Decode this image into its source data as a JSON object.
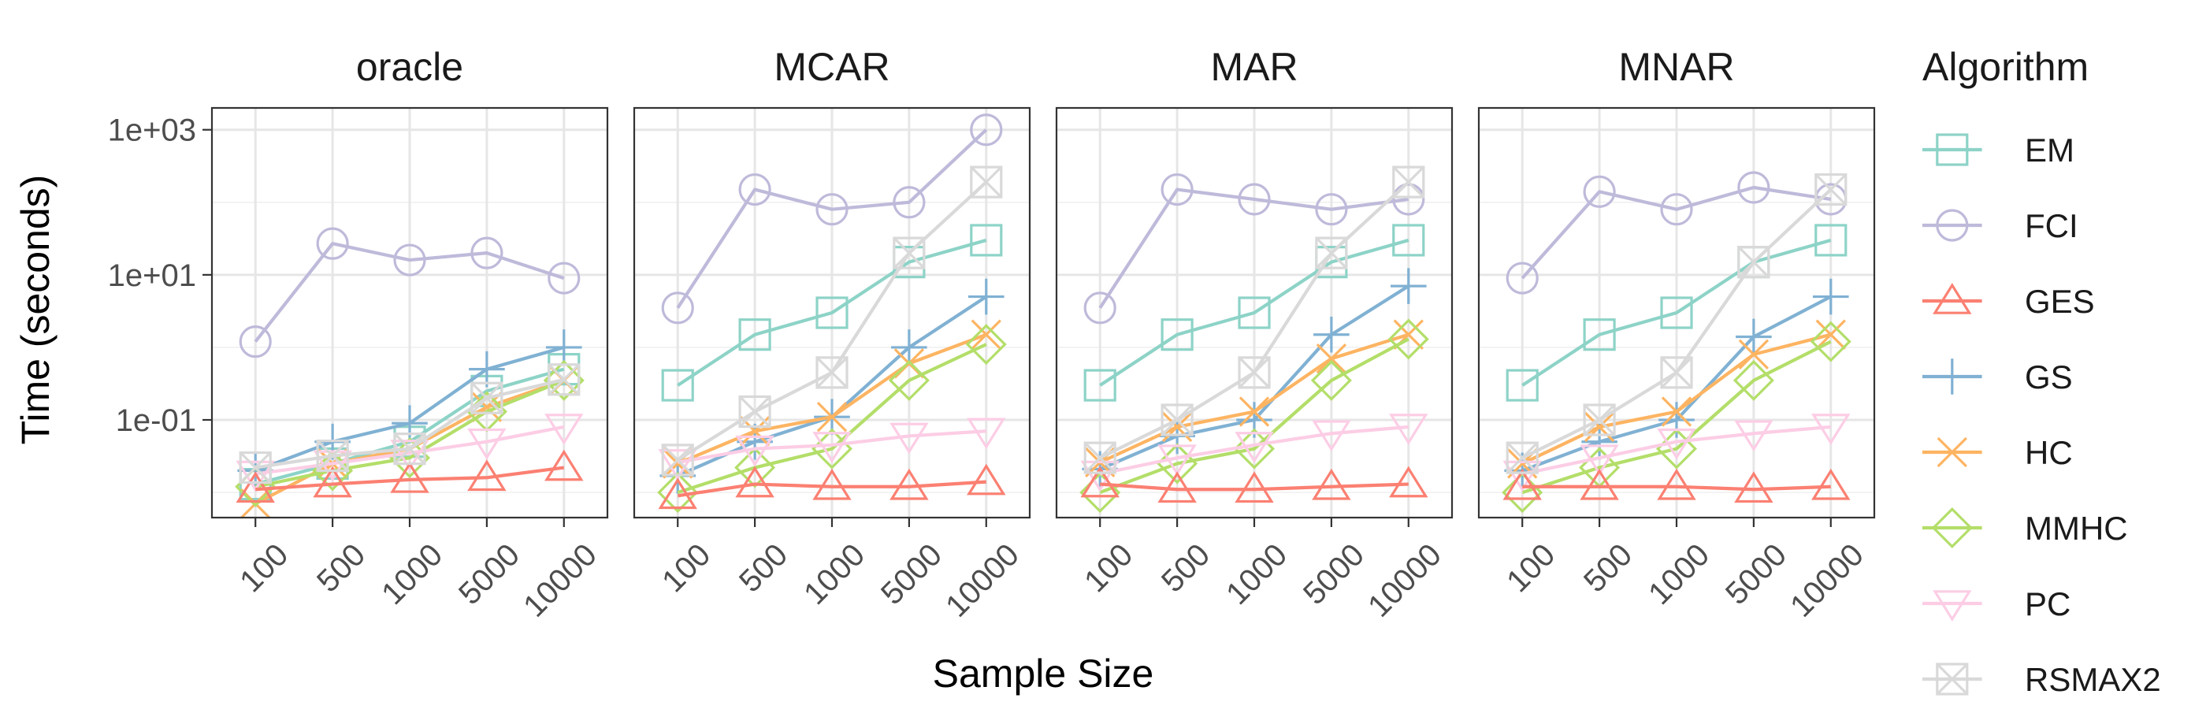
{
  "chart_data": {
    "type": "line",
    "y_scale": "log10",
    "ylabel": "Time (seconds)",
    "xlabel": "Sample Size",
    "x_categories": [
      "100",
      "500",
      "1000",
      "5000",
      "10000"
    ],
    "y_ticks": [
      {
        "value": 1000,
        "label": "1e+03"
      },
      {
        "value": 10,
        "label": "1e+01"
      },
      {
        "value": 0.1,
        "label": "1e-01"
      }
    ],
    "ylim": [
      0.0045,
      2000
    ],
    "grid": true,
    "legend": {
      "title": "Algorithm",
      "position": "right",
      "entries": [
        "EM",
        "FCI",
        "GES",
        "GS",
        "HC",
        "MMHC",
        "PC",
        "RSMAX2"
      ]
    },
    "series_styles": {
      "EM": {
        "color": "#8dd3c7",
        "shape": "square"
      },
      "FCI": {
        "color": "#bebada",
        "shape": "circle"
      },
      "GES": {
        "color": "#fb8072",
        "shape": "triangle-up"
      },
      "GS": {
        "color": "#80b1d3",
        "shape": "plus"
      },
      "HC": {
        "color": "#fdb462",
        "shape": "cross"
      },
      "MMHC": {
        "color": "#b3de69",
        "shape": "diamond"
      },
      "PC": {
        "color": "#fccde5",
        "shape": "triangle-down"
      },
      "RSMAX2": {
        "color": "#d9d9d9",
        "shape": "square-cross"
      }
    },
    "panels": [
      {
        "title": "oracle",
        "series": [
          {
            "name": "FCI",
            "values": [
              1.2,
              27,
              16,
              20,
              9
            ]
          },
          {
            "name": "EM",
            "values": [
              0.013,
              0.025,
              0.05,
              0.25,
              0.5
            ]
          },
          {
            "name": "GS",
            "values": [
              0.02,
              0.05,
              0.09,
              0.5,
              1.0
            ]
          },
          {
            "name": "HC",
            "values": [
              0.007,
              0.025,
              0.04,
              0.15,
              0.35
            ]
          },
          {
            "name": "MMHC",
            "values": [
              0.012,
              0.02,
              0.03,
              0.13,
              0.35
            ]
          },
          {
            "name": "PC",
            "values": [
              0.018,
              0.025,
              0.035,
              0.05,
              0.08
            ]
          },
          {
            "name": "GES",
            "values": [
              0.011,
              0.013,
              0.015,
              0.016,
              0.022
            ]
          },
          {
            "name": "RSMAX2",
            "values": [
              0.022,
              0.032,
              0.04,
              0.2,
              0.36
            ]
          }
        ]
      },
      {
        "title": "MCAR",
        "series": [
          {
            "name": "FCI",
            "values": [
              3.5,
              150,
              80,
              100,
              1000
            ]
          },
          {
            "name": "EM",
            "values": [
              0.3,
              1.5,
              3,
              15,
              30
            ]
          },
          {
            "name": "GS",
            "values": [
              0.017,
              0.05,
              0.11,
              1.0,
              5
            ]
          },
          {
            "name": "HC",
            "values": [
              0.025,
              0.07,
              0.11,
              0.6,
              1.5
            ]
          },
          {
            "name": "MMHC",
            "values": [
              0.01,
              0.022,
              0.04,
              0.35,
              1.1
            ]
          },
          {
            "name": "PC",
            "values": [
              0.026,
              0.04,
              0.045,
              0.06,
              0.07
            ]
          },
          {
            "name": "GES",
            "values": [
              0.009,
              0.013,
              0.012,
              0.012,
              0.014
            ]
          },
          {
            "name": "RSMAX2",
            "values": [
              0.028,
              0.13,
              0.45,
              20,
              190
            ]
          }
        ]
      },
      {
        "title": "MAR",
        "series": [
          {
            "name": "FCI",
            "values": [
              3.5,
              150,
              110,
              80,
              110
            ]
          },
          {
            "name": "EM",
            "values": [
              0.3,
              1.5,
              3,
              15,
              30
            ]
          },
          {
            "name": "GS",
            "values": [
              0.021,
              0.06,
              0.1,
              1.5,
              7
            ]
          },
          {
            "name": "HC",
            "values": [
              0.026,
              0.08,
              0.13,
              0.7,
              1.5
            ]
          },
          {
            "name": "MMHC",
            "values": [
              0.01,
              0.025,
              0.04,
              0.35,
              1.3
            ]
          },
          {
            "name": "PC",
            "values": [
              0.018,
              0.03,
              0.045,
              0.065,
              0.08
            ]
          },
          {
            "name": "GES",
            "values": [
              0.013,
              0.011,
              0.011,
              0.012,
              0.013
            ]
          },
          {
            "name": "RSMAX2",
            "values": [
              0.03,
              0.1,
              0.45,
              20,
              190
            ]
          }
        ]
      },
      {
        "title": "MNAR",
        "series": [
          {
            "name": "FCI",
            "values": [
              9,
              140,
              80,
              160,
              110
            ]
          },
          {
            "name": "EM",
            "values": [
              0.3,
              1.5,
              3,
              15,
              30
            ]
          },
          {
            "name": "GS",
            "values": [
              0.02,
              0.05,
              0.1,
              1.4,
              5
            ]
          },
          {
            "name": "HC",
            "values": [
              0.025,
              0.08,
              0.13,
              0.8,
              1.5
            ]
          },
          {
            "name": "MMHC",
            "values": [
              0.01,
              0.022,
              0.04,
              0.35,
              1.2
            ]
          },
          {
            "name": "PC",
            "values": [
              0.018,
              0.03,
              0.05,
              0.065,
              0.08
            ]
          },
          {
            "name": "GES",
            "values": [
              0.012,
              0.012,
              0.012,
              0.011,
              0.012
            ]
          },
          {
            "name": "RSMAX2",
            "values": [
              0.03,
              0.1,
              0.45,
              15,
              150
            ]
          }
        ]
      }
    ]
  }
}
